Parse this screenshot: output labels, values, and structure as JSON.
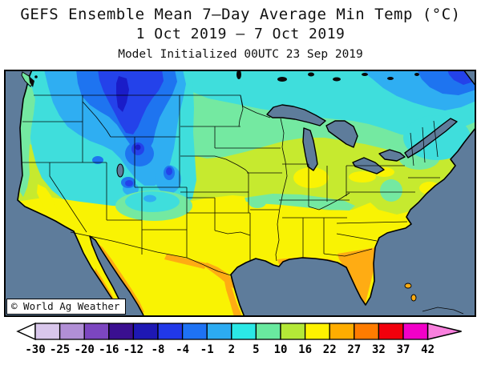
{
  "title": {
    "line1": "GEFS Ensemble Mean 7–Day Average Min Temp (°C)",
    "line2": "1 Oct 2019 – 7 Oct 2019",
    "line3": "Model Initialized 00UTC 23 Sep 2019"
  },
  "watermark": "© World Ag Weather",
  "legend": {
    "ticks": [
      "-30",
      "-25",
      "-20",
      "-16",
      "-12",
      "-8",
      "-4",
      "-1",
      "2",
      "5",
      "10",
      "16",
      "22",
      "27",
      "32",
      "37",
      "42"
    ],
    "colors": [
      "#D9C7EC",
      "#B18FD6",
      "#7C46C0",
      "#3A0F90",
      "#1E18B4",
      "#2138E8",
      "#1E72F4",
      "#2CABF2",
      "#2BE8E6",
      "#69E99F",
      "#B4E837",
      "#FFF200",
      "#FFAD00",
      "#FF7C00",
      "#F2000C",
      "#F200C8"
    ],
    "arrow_left_color": "#FFFFFF",
    "arrow_right_color": "#F980DE"
  },
  "map_palette": {
    "ocean": "#5E7C9B",
    "navy_minus12_minus8": "#1A1CC8",
    "royal_minus8_minus4": "#2442EA",
    "blue_minus4_minus1": "#1E74F0",
    "skyblue_minus1_2": "#2FAEF2",
    "cyan_2_5": "#3FDEDC",
    "green_5_10": "#74E9A1",
    "yellowgreen_10_16": "#C6EA2F",
    "yellow_16_22": "#F9F303",
    "orange_22_27": "#FFAC13"
  },
  "chart_data": {
    "type": "filled-contour-map",
    "model": "GEFS Ensemble Mean",
    "variable": "7-Day Average Minimum Temperature",
    "units": "°C",
    "region": "Continental United States and surrounding North America",
    "valid_period": "1 Oct 2019 – 7 Oct 2019",
    "initialization": "00UTC 23 Sep 2019",
    "contour_levels": [
      -30,
      -25,
      -20,
      -16,
      -12,
      -8,
      -4,
      -1,
      2,
      5,
      10,
      16,
      22,
      27,
      32,
      37,
      42
    ],
    "legend_position": "bottom",
    "readings": [
      {
        "area": "Western Montana / Idaho Rockies",
        "value_range_c": "-8 to -1"
      },
      {
        "area": "Montana and Wyoming high plains",
        "value_range_c": "-1 to 2"
      },
      {
        "area": "Pacific Northwest / Great Basin (WA, OR, NV, UT)",
        "value_range_c": "2 to 5"
      },
      {
        "area": "Colorado Rockies",
        "value_range_c": "-4 to 2"
      },
      {
        "area": "Arizona / New Mexico high plateau",
        "value_range_c": "-1 to 5"
      },
      {
        "area": "Northern Plains, Minnesota, Wisconsin, northern New England",
        "value_range_c": "5 to 10"
      },
      {
        "area": "Southern Canada (Prairies, Ontario, Quebec)",
        "value_range_c": "-1 to 5"
      },
      {
        "area": "Midwest, Ohio Valley, Mid-Atlantic, California coast",
        "value_range_c": "10 to 16"
      },
      {
        "area": "Southern US from Texas to the Carolinas, California valleys",
        "value_range_c": "16 to 22"
      },
      {
        "area": "Florida peninsula, South Texas / Rio Grande, NW Mexico coast",
        "value_range_c": "22 to 27"
      }
    ]
  }
}
